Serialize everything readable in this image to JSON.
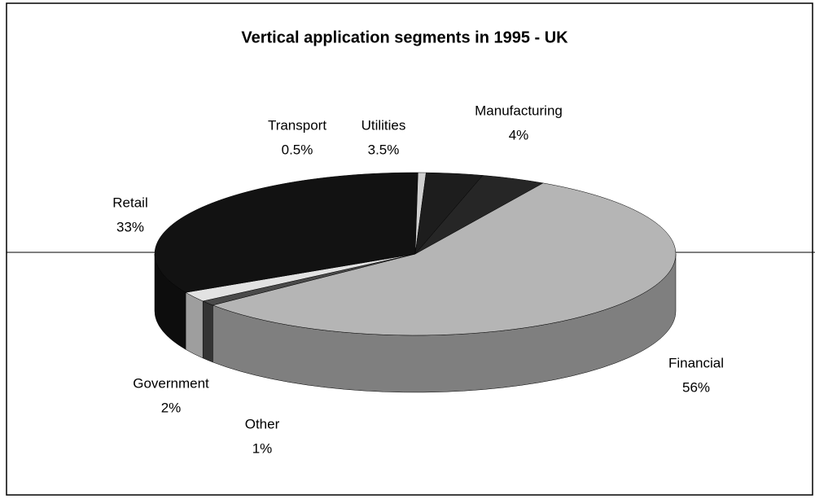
{
  "chart_data": {
    "type": "pie",
    "title": "Vertical application segments in 1995 - UK",
    "categories": [
      "Manufacturing",
      "Financial",
      "Other",
      "Government",
      "Retail",
      "Transport",
      "Utilities"
    ],
    "values": [
      4,
      56,
      1,
      2,
      33,
      0.5,
      3.5
    ],
    "value_labels": [
      "4%",
      "56%",
      "1%",
      "2%",
      "33%",
      "0.5%",
      "3.5%"
    ],
    "colors": [
      "#262626",
      "#b5b5b5",
      "#4a4a4a",
      "#e2e2e2",
      "#121212",
      "#cfcfcf",
      "#1d1d1d"
    ]
  }
}
